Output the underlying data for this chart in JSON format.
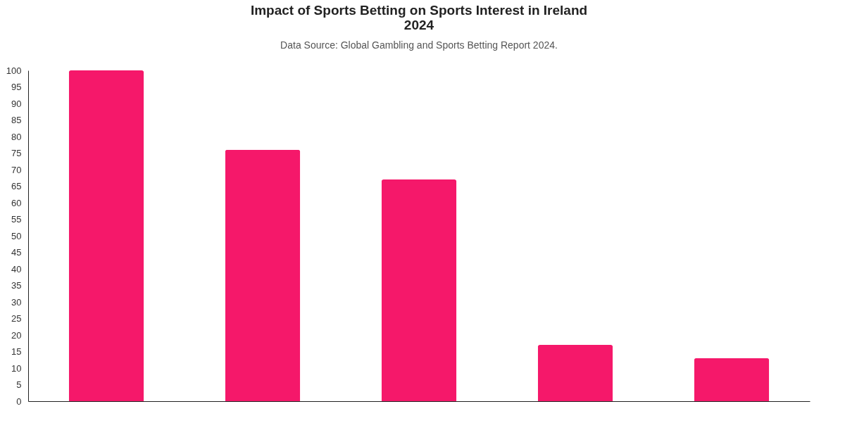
{
  "chart_data": {
    "type": "bar",
    "title": "Impact of Sports Betting on Sports Interest in Ireland\n2024",
    "subtitle": "Data Source: Global Gambling and Sports Betting Report 2024.",
    "categories": [
      null,
      null,
      null,
      null,
      null
    ],
    "values": [
      100,
      76,
      67,
      17,
      13
    ],
    "color": "#f5186a",
    "ylim": [
      0,
      100
    ],
    "yticks": [
      0,
      5,
      10,
      15,
      20,
      25,
      30,
      35,
      40,
      45,
      50,
      55,
      60,
      65,
      70,
      75,
      80,
      85,
      90,
      95,
      100
    ],
    "grid": false
  }
}
